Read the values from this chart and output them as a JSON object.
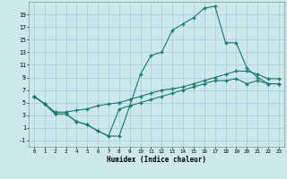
{
  "xlabel": "Humidex (Indice chaleur)",
  "bg_color": "#cce8ec",
  "grid_color": "#a8cdd4",
  "line_color": "#1a7a6a",
  "xlim": [
    -0.5,
    23.5
  ],
  "ylim": [
    -2.0,
    21.0
  ],
  "xticks": [
    0,
    1,
    2,
    3,
    4,
    5,
    6,
    7,
    8,
    9,
    10,
    11,
    12,
    13,
    14,
    15,
    16,
    17,
    18,
    19,
    20,
    21,
    22,
    23
  ],
  "yticks": [
    -1,
    1,
    3,
    5,
    7,
    9,
    11,
    13,
    15,
    17,
    19
  ],
  "curve1_x": [
    0,
    1,
    2,
    3,
    4,
    5,
    6,
    7,
    8,
    9,
    10,
    11,
    12,
    13,
    14,
    15,
    16,
    17,
    18,
    19,
    20,
    21,
    22,
    23
  ],
  "curve1_y": [
    6.0,
    4.8,
    3.2,
    3.2,
    2.0,
    1.5,
    0.5,
    -0.3,
    -0.3,
    4.5,
    9.5,
    12.5,
    13.0,
    16.5,
    17.5,
    18.5,
    20.0,
    20.3,
    14.5,
    14.5,
    10.5,
    9.0,
    8.0,
    8.0
  ],
  "curve2_x": [
    0,
    1,
    2,
    3,
    4,
    5,
    6,
    7,
    8,
    9,
    10,
    11,
    12,
    13,
    14,
    15,
    16,
    17,
    18,
    19,
    20,
    21,
    22,
    23
  ],
  "curve2_y": [
    6.0,
    4.8,
    3.5,
    3.5,
    3.8,
    4.0,
    4.5,
    4.8,
    5.0,
    5.5,
    6.0,
    6.5,
    7.0,
    7.2,
    7.5,
    8.0,
    8.5,
    9.0,
    9.5,
    10.0,
    10.0,
    9.5,
    8.8,
    8.8
  ],
  "curve3_x": [
    0,
    1,
    2,
    3,
    4,
    5,
    6,
    7,
    8,
    9,
    10,
    11,
    12,
    13,
    14,
    15,
    16,
    17,
    18,
    19,
    20,
    21,
    22,
    23
  ],
  "curve3_y": [
    6.0,
    4.8,
    3.2,
    3.2,
    2.0,
    1.5,
    0.5,
    -0.3,
    4.0,
    4.5,
    5.0,
    5.5,
    6.0,
    6.5,
    7.0,
    7.5,
    8.0,
    8.5,
    8.5,
    8.8,
    8.0,
    8.5,
    8.0,
    8.0
  ]
}
